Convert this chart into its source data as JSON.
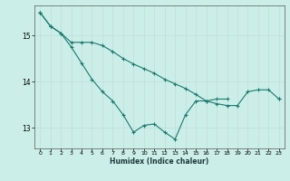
{
  "xlabel": "Humidex (Indice chaleur)",
  "bg_color": "#cceee8",
  "grid_color": "#c0ddd8",
  "line_color": "#1a7a6e",
  "xlim": [
    -0.5,
    23.5
  ],
  "ylim": [
    12.55,
    15.65
  ],
  "yticks": [
    13,
    14,
    15
  ],
  "xticks": [
    0,
    1,
    2,
    3,
    4,
    5,
    6,
    7,
    8,
    9,
    10,
    11,
    12,
    13,
    14,
    15,
    16,
    17,
    18,
    19,
    20,
    21,
    22,
    23
  ],
  "line1_y": [
    15.5,
    15.2,
    15.05,
    14.75,
    14.4,
    14.05,
    13.78,
    13.58,
    13.28,
    12.9,
    13.05,
    13.08,
    12.9,
    12.75,
    13.28,
    13.58,
    13.58,
    13.62,
    13.62,
    null,
    null,
    null,
    null,
    null
  ],
  "line2_y": [
    15.5,
    null,
    null,
    null,
    null,
    null,
    null,
    null,
    null,
    null,
    null,
    null,
    null,
    null,
    null,
    null,
    null,
    null,
    null,
    null,
    null,
    null,
    null,
    13.62
  ],
  "line3_y": [
    15.5,
    15.2,
    15.05,
    14.85,
    14.85,
    14.85,
    14.78,
    14.65,
    14.5,
    14.38,
    14.28,
    14.18,
    14.05,
    13.95,
    13.85,
    13.72,
    13.58,
    13.52,
    13.48,
    13.48,
    13.78,
    13.82,
    13.82,
    13.62
  ]
}
